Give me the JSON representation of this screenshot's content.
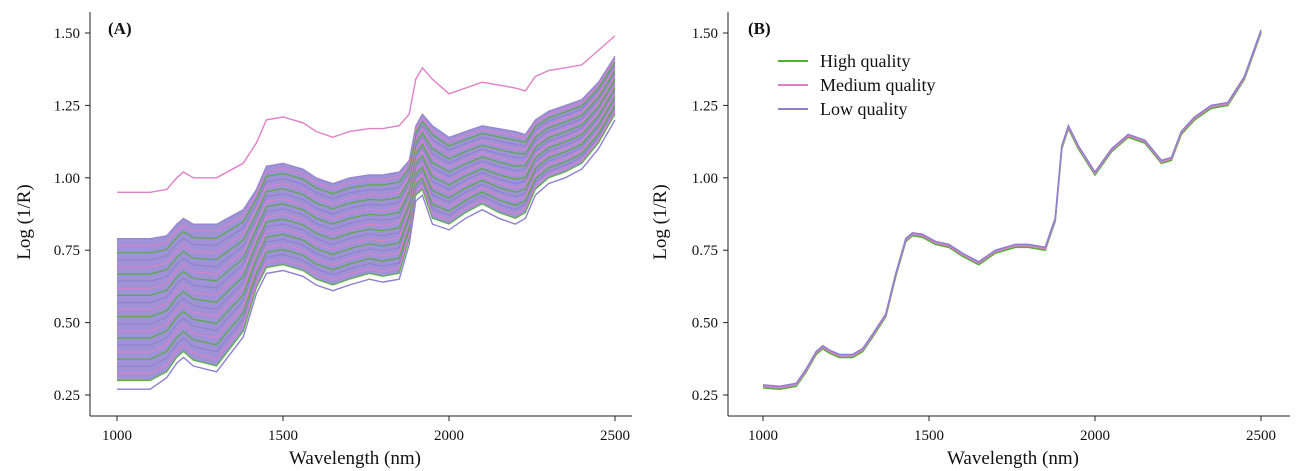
{
  "chart_data": [
    {
      "type": "line",
      "panel_label": "(A)",
      "xlabel": "Wavelength (nm)",
      "ylabel": "Log (1/R)",
      "xlim": [
        1000,
        2500
      ],
      "ylim": [
        0.25,
        1.5
      ],
      "x_ticks": [
        "1000",
        "1500",
        "2000",
        "2500"
      ],
      "y_ticks": [
        "0.25",
        "0.50",
        "0.75",
        "1.00",
        "1.25",
        "1.50"
      ],
      "grid": false,
      "legend": "none",
      "colors": {
        "High quality": "#4caf2f",
        "Medium quality": "#e07fc8",
        "Low quality": "#8e7fcf"
      },
      "reference_curves": [
        {
          "class": "Medium quality",
          "x": [
            1000,
            1100,
            1150,
            1180,
            1200,
            1230,
            1300,
            1380,
            1420,
            1450,
            1500,
            1560,
            1600,
            1650,
            1700,
            1760,
            1800,
            1850,
            1880,
            1900,
            1920,
            1950,
            2000,
            2050,
            2100,
            2150,
            2200,
            2230,
            2260,
            2300,
            2350,
            2400,
            2450,
            2500
          ],
          "y": [
            0.95,
            0.95,
            0.96,
            1.0,
            1.02,
            1.0,
            1.0,
            1.05,
            1.12,
            1.2,
            1.21,
            1.19,
            1.16,
            1.14,
            1.16,
            1.17,
            1.17,
            1.18,
            1.22,
            1.34,
            1.38,
            1.34,
            1.29,
            1.31,
            1.33,
            1.32,
            1.31,
            1.3,
            1.35,
            1.37,
            1.38,
            1.39,
            1.44,
            1.49
          ]
        },
        {
          "class": "Low quality",
          "x": [
            1000,
            1100,
            1150,
            1180,
            1200,
            1230,
            1300,
            1380,
            1420,
            1450,
            1500,
            1560,
            1600,
            1650,
            1700,
            1760,
            1800,
            1850,
            1880,
            1900,
            1920,
            1950,
            2000,
            2050,
            2100,
            2150,
            2200,
            2230,
            2260,
            2300,
            2350,
            2400,
            2450,
            2500
          ],
          "y": [
            0.27,
            0.27,
            0.31,
            0.36,
            0.38,
            0.35,
            0.33,
            0.45,
            0.6,
            0.67,
            0.68,
            0.66,
            0.63,
            0.61,
            0.63,
            0.65,
            0.64,
            0.65,
            0.77,
            0.92,
            0.94,
            0.84,
            0.82,
            0.86,
            0.89,
            0.86,
            0.84,
            0.86,
            0.94,
            0.98,
            1.0,
            1.03,
            1.1,
            1.2
          ]
        }
      ],
      "band_envelope": {
        "x": [
          1000,
          1100,
          1150,
          1180,
          1200,
          1230,
          1300,
          1380,
          1420,
          1450,
          1500,
          1560,
          1600,
          1650,
          1700,
          1760,
          1800,
          1850,
          1880,
          1900,
          1920,
          1950,
          2000,
          2050,
          2100,
          2150,
          2200,
          2230,
          2260,
          2300,
          2350,
          2400,
          2450,
          2500
        ],
        "lower": [
          0.3,
          0.3,
          0.33,
          0.38,
          0.4,
          0.37,
          0.35,
          0.47,
          0.62,
          0.69,
          0.7,
          0.68,
          0.65,
          0.63,
          0.65,
          0.67,
          0.66,
          0.67,
          0.79,
          0.94,
          0.96,
          0.86,
          0.84,
          0.88,
          0.91,
          0.88,
          0.86,
          0.88,
          0.96,
          1.0,
          1.02,
          1.05,
          1.12,
          1.22
        ],
        "upper": [
          0.79,
          0.79,
          0.8,
          0.84,
          0.86,
          0.84,
          0.84,
          0.89,
          0.96,
          1.04,
          1.05,
          1.03,
          1.0,
          0.98,
          1.0,
          1.01,
          1.01,
          1.02,
          1.06,
          1.18,
          1.22,
          1.18,
          1.14,
          1.16,
          1.18,
          1.17,
          1.16,
          1.15,
          1.2,
          1.23,
          1.25,
          1.27,
          1.33,
          1.42
        ]
      }
    },
    {
      "type": "line",
      "panel_label": "(B)",
      "xlabel": "Wavelength (nm)",
      "ylabel": "Log (1/R)",
      "xlim": [
        1000,
        2500
      ],
      "ylim": [
        0.25,
        1.5
      ],
      "x_ticks": [
        "1000",
        "1500",
        "2000",
        "2500"
      ],
      "y_ticks": [
        "0.25",
        "0.50",
        "0.75",
        "1.00",
        "1.25",
        "1.50"
      ],
      "grid": false,
      "legend": "top-left",
      "x": [
        1000,
        1050,
        1100,
        1130,
        1160,
        1180,
        1200,
        1230,
        1270,
        1300,
        1330,
        1370,
        1400,
        1430,
        1450,
        1480,
        1520,
        1560,
        1600,
        1650,
        1700,
        1760,
        1800,
        1850,
        1880,
        1900,
        1920,
        1950,
        2000,
        2050,
        2100,
        2150,
        2200,
        2230,
        2260,
        2300,
        2350,
        2400,
        2450,
        2500
      ],
      "series": [
        {
          "name": "High quality",
          "color": "#4caf2f",
          "values": [
            0.275,
            0.27,
            0.28,
            0.33,
            0.39,
            0.41,
            0.395,
            0.38,
            0.38,
            0.4,
            0.45,
            0.52,
            0.66,
            0.78,
            0.8,
            0.795,
            0.77,
            0.76,
            0.73,
            0.7,
            0.74,
            0.76,
            0.76,
            0.75,
            0.85,
            1.1,
            1.17,
            1.1,
            1.01,
            1.09,
            1.14,
            1.12,
            1.05,
            1.06,
            1.15,
            1.2,
            1.24,
            1.25,
            1.34,
            1.5
          ]
        },
        {
          "name": "Medium quality",
          "color": "#e07fc8",
          "values": [
            0.28,
            0.275,
            0.285,
            0.335,
            0.395,
            0.415,
            0.4,
            0.385,
            0.385,
            0.405,
            0.455,
            0.525,
            0.665,
            0.785,
            0.805,
            0.8,
            0.775,
            0.765,
            0.735,
            0.705,
            0.745,
            0.765,
            0.765,
            0.755,
            0.855,
            1.105,
            1.175,
            1.105,
            1.015,
            1.095,
            1.145,
            1.125,
            1.055,
            1.065,
            1.155,
            1.205,
            1.245,
            1.255,
            1.345,
            1.505
          ]
        },
        {
          "name": "Low quality",
          "color": "#8e7fcf",
          "values": [
            0.285,
            0.28,
            0.29,
            0.34,
            0.4,
            0.42,
            0.405,
            0.39,
            0.39,
            0.41,
            0.46,
            0.53,
            0.67,
            0.79,
            0.81,
            0.805,
            0.78,
            0.77,
            0.74,
            0.71,
            0.75,
            0.77,
            0.77,
            0.76,
            0.86,
            1.11,
            1.18,
            1.11,
            1.02,
            1.1,
            1.15,
            1.13,
            1.06,
            1.07,
            1.16,
            1.21,
            1.25,
            1.26,
            1.35,
            1.51
          ]
        }
      ]
    }
  ]
}
